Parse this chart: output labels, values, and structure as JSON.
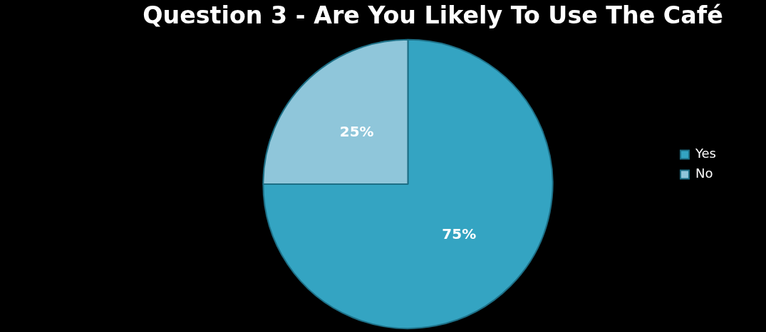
{
  "chart_data": {
    "type": "pie",
    "title": "Question 3 - Are You Likely To Use The Café",
    "categories": [
      "Yes",
      "No"
    ],
    "values": [
      75,
      25
    ],
    "colors": [
      "#34a4c2",
      "#8fc6da"
    ],
    "value_labels": [
      "75%",
      "25%"
    ],
    "legend": "right"
  }
}
